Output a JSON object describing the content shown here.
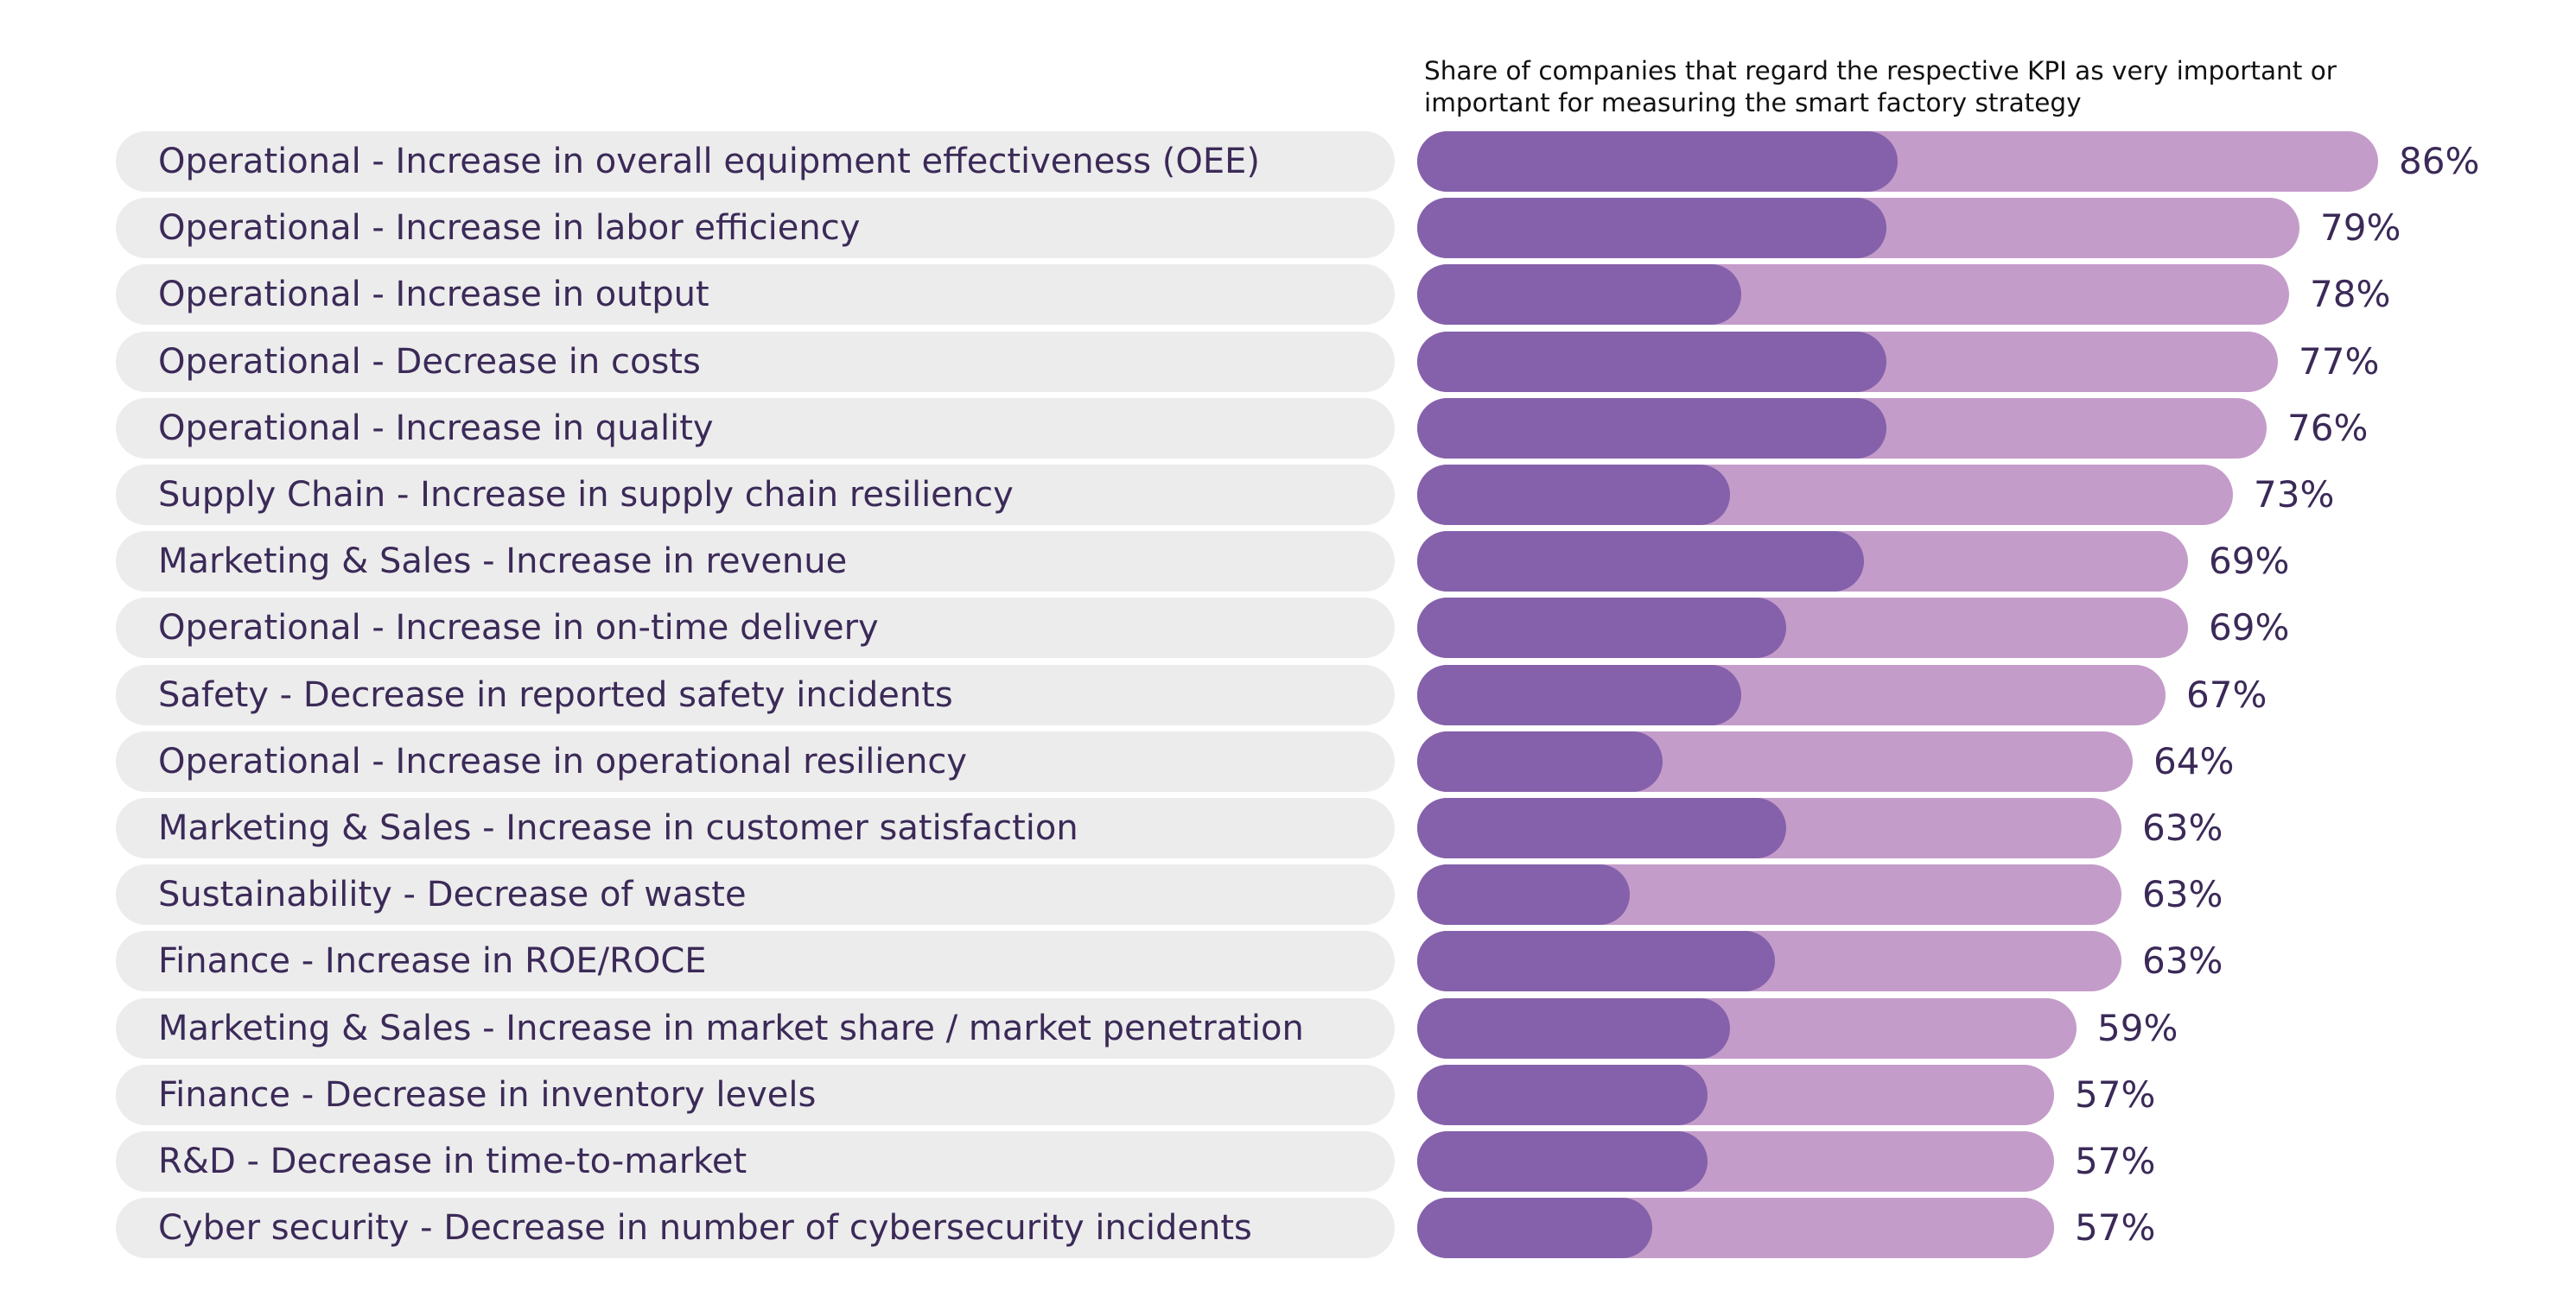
{
  "chart_data": {
    "type": "bar",
    "orientation": "horizontal",
    "title": "Share of companies that regard the respective KPI as very important or important for measuring the smart factory strategy",
    "categories": [
      "Operational - Increase in overall equipment effectiveness (OEE)",
      "Operational - Increase in labor efficiency",
      "Operational - Increase in output",
      "Operational - Decrease in costs",
      "Operational - Increase in quality",
      "Supply Chain - Increase in supply chain resiliency",
      "Marketing & Sales - Increase in revenue",
      "Operational - Increase in on-time delivery",
      "Safety - Decrease in reported safety incidents",
      "Operational - Increase in operational resiliency",
      "Marketing & Sales - Increase in customer satisfaction",
      "Sustainability - Decrease of waste",
      "Finance - Increase in ROE/ROCE",
      "Marketing & Sales - Increase in market share / market penetration",
      "Finance - Decrease in inventory levels",
      "R&D - Decrease in time-to-market",
      "Cyber security - Decrease in number of cybersecurity incidents"
    ],
    "series": [
      {
        "values": [
          86,
          79,
          78,
          77,
          76,
          73,
          69,
          69,
          67,
          64,
          63,
          63,
          63,
          59,
          57,
          57,
          57
        ]
      },
      {
        "values": [
          43,
          42,
          29,
          42,
          42,
          28,
          40,
          33,
          29,
          22,
          33,
          19,
          32,
          28,
          26,
          26,
          21
        ]
      }
    ],
    "value_labels": [
      "86%",
      "79%",
      "78%",
      "77%",
      "76%",
      "73%",
      "69%",
      "69%",
      "67%",
      "64%",
      "63%",
      "63%",
      "63%",
      "59%",
      "57%",
      "57%",
      "57%"
    ],
    "xlim": [
      0,
      100
    ],
    "grid": false,
    "colors": {
      "total": "#c49cca",
      "strong": "#8461aa",
      "label_pill": "#ececec",
      "text": "#3b2a58"
    }
  }
}
